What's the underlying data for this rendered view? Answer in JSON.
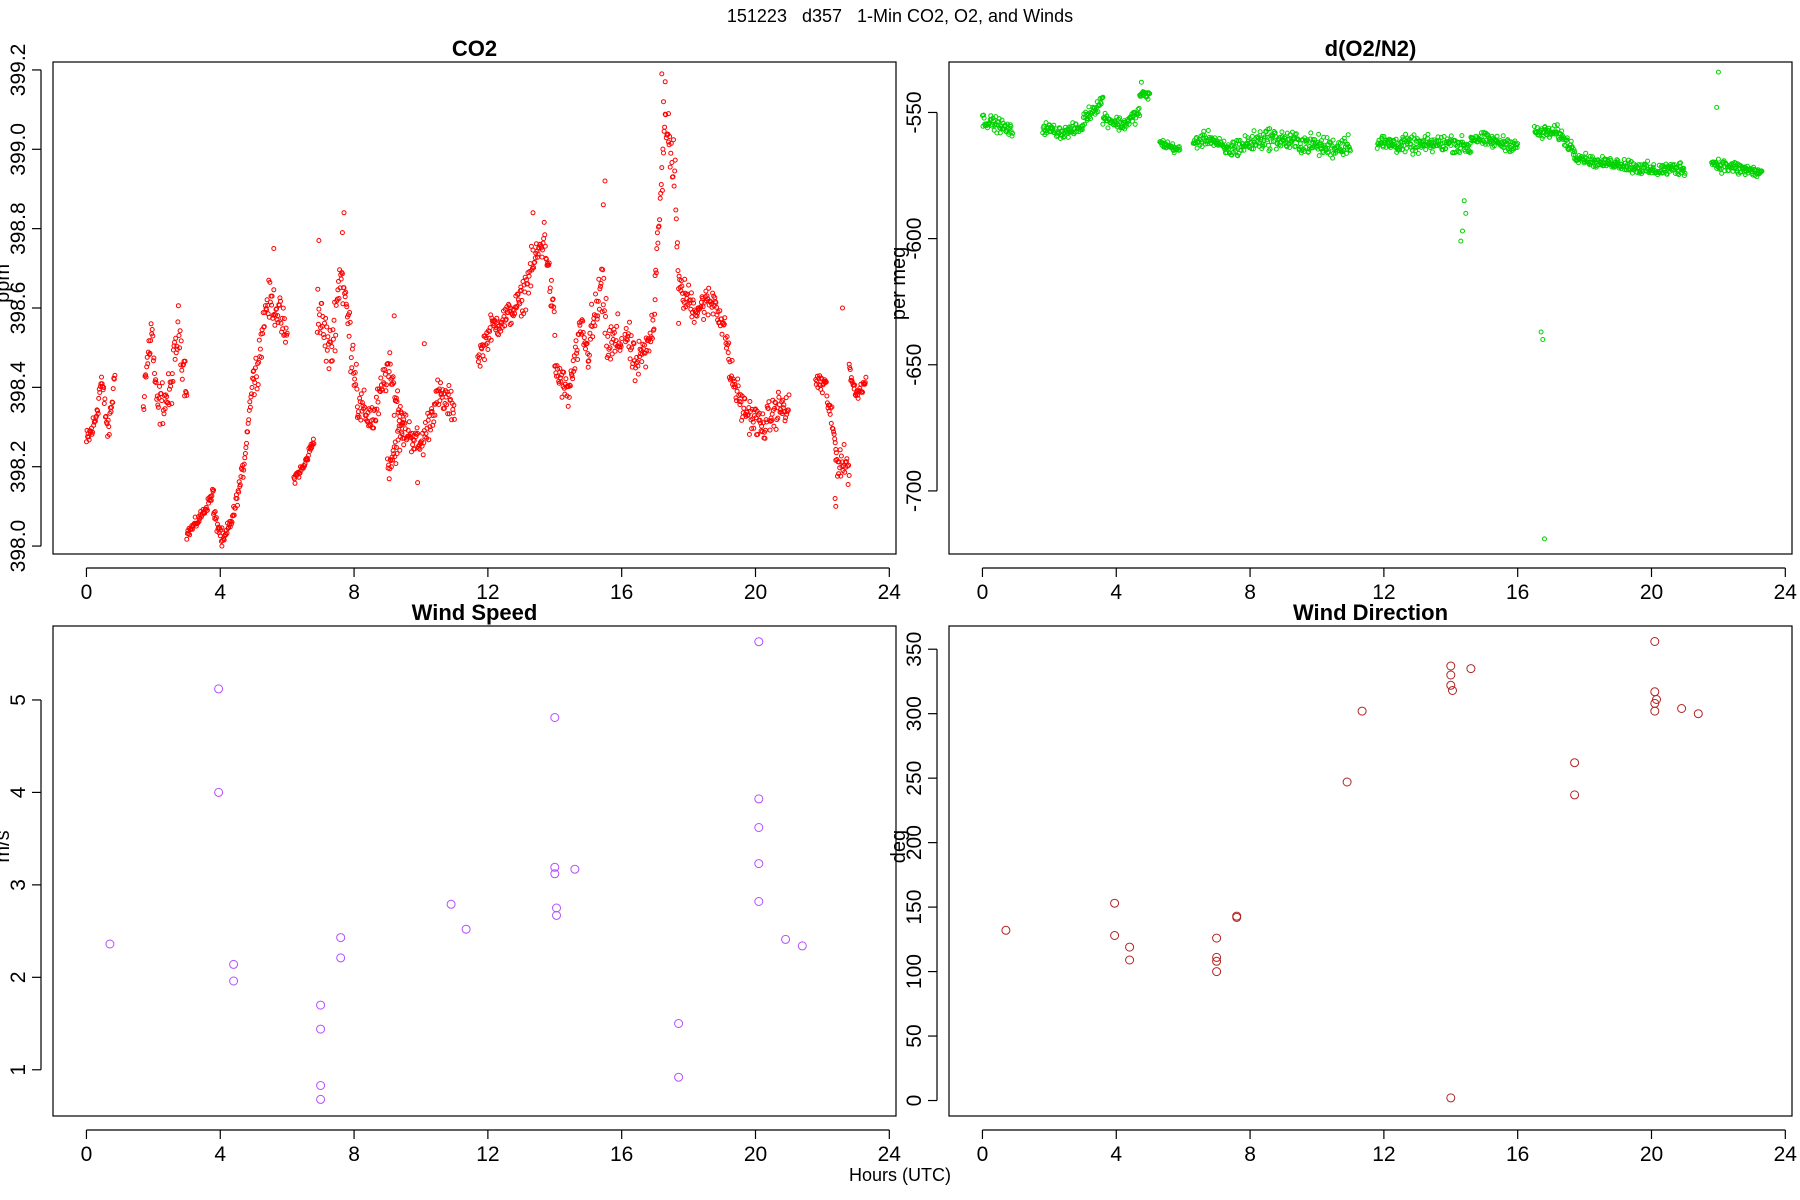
{
  "page": {
    "title": "151223   d357   1-Min CO2, O2, and Winds",
    "xlabel": "Hours (UTC)"
  },
  "chart_data": [
    {
      "id": "co2",
      "type": "scatter",
      "title": "CO2",
      "xlabel": "",
      "ylabel": "ppm",
      "xlim": [
        -1,
        24.2
      ],
      "ylim": [
        397.98,
        399.22
      ],
      "xticks": [
        0,
        4,
        8,
        12,
        16,
        20,
        24
      ],
      "yticks": [
        398.0,
        398.2,
        398.4,
        398.6,
        398.8,
        399.0,
        399.2
      ],
      "ytick_decimals": 1,
      "color": "#ff0000",
      "marker_radius": 2,
      "segments": [
        [
          0.0,
          0.85,
          [
            [
              0,
              398.26
            ],
            [
              0.25,
              398.31
            ],
            [
              0.45,
              398.42
            ],
            [
              0.65,
              398.28
            ],
            [
              0.85,
              398.43
            ]
          ],
          0.05
        ],
        [
          1.7,
          3.0,
          [
            [
              1.7,
              398.38
            ],
            [
              1.95,
              398.55
            ],
            [
              2.1,
              398.35
            ],
            [
              2.5,
              398.38
            ],
            [
              2.75,
              398.55
            ],
            [
              3.0,
              398.4
            ]
          ],
          0.08
        ],
        [
          3.0,
          3.8,
          [
            [
              3.0,
              398.03
            ],
            [
              3.3,
              398.06
            ],
            [
              3.6,
              398.1
            ],
            [
              3.8,
              398.14
            ]
          ],
          0.02
        ],
        [
          3.8,
          5.0,
          [
            [
              3.8,
              398.08
            ],
            [
              4.1,
              398.01
            ],
            [
              4.4,
              398.08
            ],
            [
              4.7,
              398.2
            ],
            [
              5.0,
              398.45
            ]
          ],
          0.03
        ],
        [
          5.0,
          6.0,
          [
            [
              5.0,
              398.4
            ],
            [
              5.4,
              398.62
            ],
            [
              5.7,
              398.6
            ],
            [
              6.0,
              398.52
            ]
          ],
          0.07
        ],
        [
          6.2,
          6.8,
          [
            [
              6.2,
              398.17
            ],
            [
              6.5,
              398.2
            ],
            [
              6.8,
              398.27
            ]
          ],
          0.02
        ],
        [
          6.9,
          8.1,
          [
            [
              6.9,
              398.6
            ],
            [
              7.3,
              398.48
            ],
            [
              7.6,
              398.7
            ],
            [
              8.1,
              398.4
            ]
          ],
          0.1
        ],
        [
          8.1,
          9.5,
          [
            [
              8.1,
              398.35
            ],
            [
              8.6,
              398.32
            ],
            [
              9.0,
              398.45
            ],
            [
              9.5,
              398.3
            ]
          ],
          0.07
        ],
        [
          9.0,
          11.0,
          [
            [
              9.0,
              398.2
            ],
            [
              9.5,
              398.3
            ],
            [
              10.0,
              398.25
            ],
            [
              10.5,
              398.38
            ],
            [
              11.0,
              398.35
            ]
          ],
          0.06
        ],
        [
          11.7,
          13.0,
          [
            [
              11.7,
              398.47
            ],
            [
              12.1,
              398.55
            ],
            [
              12.6,
              398.58
            ],
            [
              13.0,
              398.62
            ]
          ],
          0.05
        ],
        [
          13.0,
          14.0,
          [
            [
              13.0,
              398.62
            ],
            [
              13.4,
              398.72
            ],
            [
              13.7,
              398.78
            ],
            [
              14.0,
              398.55
            ]
          ],
          0.07
        ],
        [
          14.0,
          15.0,
          [
            [
              14.0,
              398.45
            ],
            [
              14.4,
              398.38
            ],
            [
              14.8,
              398.55
            ],
            [
              15.0,
              398.48
            ]
          ],
          0.06
        ],
        [
          15.0,
          16.0,
          [
            [
              15.0,
              398.5
            ],
            [
              15.4,
              398.65
            ],
            [
              15.6,
              398.5
            ],
            [
              16.0,
              398.52
            ]
          ],
          0.1
        ],
        [
          16.1,
          17.0,
          [
            [
              16.1,
              398.55
            ],
            [
              16.4,
              398.45
            ],
            [
              16.8,
              398.5
            ],
            [
              17.0,
              398.6
            ]
          ],
          0.07
        ],
        [
          17.0,
          17.7,
          [
            [
              17.0,
              398.7
            ],
            [
              17.3,
              399.05
            ],
            [
              17.6,
              398.95
            ],
            [
              17.7,
              398.6
            ]
          ],
          0.1
        ],
        [
          17.7,
          19.2,
          [
            [
              17.7,
              398.65
            ],
            [
              18.2,
              398.6
            ],
            [
              18.8,
              398.62
            ],
            [
              19.2,
              398.5
            ]
          ],
          0.06
        ],
        [
          19.2,
          21.0,
          [
            [
              19.2,
              398.45
            ],
            [
              19.6,
              398.35
            ],
            [
              20.2,
              398.3
            ],
            [
              20.7,
              398.35
            ],
            [
              21.0,
              398.34
            ]
          ],
          0.06
        ],
        [
          21.8,
          22.4,
          [
            [
              21.8,
              398.42
            ],
            [
              22.1,
              398.4
            ],
            [
              22.4,
              398.25
            ]
          ],
          0.05
        ],
        [
          22.4,
          22.8,
          [
            [
              22.4,
              398.22
            ],
            [
              22.8,
              398.2
            ]
          ],
          0.06
        ],
        [
          22.8,
          23.3,
          [
            [
              22.8,
              398.45
            ],
            [
              23.0,
              398.38
            ],
            [
              23.3,
              398.42
            ]
          ],
          0.03
        ]
      ],
      "extra_points": [
        [
          17.2,
          399.19
        ],
        [
          17.3,
          399.17
        ],
        [
          17.25,
          399.12
        ],
        [
          17.4,
          399.09
        ],
        [
          15.5,
          398.92
        ],
        [
          15.45,
          398.86
        ],
        [
          7.7,
          398.84
        ],
        [
          7.65,
          398.79
        ],
        [
          6.95,
          398.77
        ],
        [
          5.6,
          398.75
        ],
        [
          13.35,
          398.84
        ],
        [
          9.2,
          398.58
        ],
        [
          10.1,
          398.51
        ],
        [
          22.6,
          398.6
        ],
        [
          22.4,
          398.1
        ],
        [
          22.38,
          398.12
        ],
        [
          4.05,
          398.0
        ],
        [
          9.9,
          398.16
        ]
      ]
    },
    {
      "id": "o2",
      "type": "scatter",
      "title": "d(O2/N2)",
      "xlabel": "",
      "ylabel": "per meg",
      "xlim": [
        -1,
        24.2
      ],
      "ylim": [
        -725,
        -530
      ],
      "xticks": [
        0,
        4,
        8,
        12,
        16,
        20,
        24
      ],
      "yticks": [
        -550,
        -600,
        -650,
        -700
      ],
      "ytick_decimals": 0,
      "color": "#00d200",
      "marker_radius": 2,
      "segments": [
        [
          0.0,
          0.9,
          [
            [
              0,
              -553
            ],
            [
              0.5,
              -555
            ],
            [
              0.9,
              -558
            ]
          ],
          4
        ],
        [
          1.8,
          3.0,
          [
            [
              1.8,
              -556
            ],
            [
              2.4,
              -558
            ],
            [
              3.0,
              -556
            ]
          ],
          3.5
        ],
        [
          3.0,
          3.6,
          [
            [
              3.0,
              -553
            ],
            [
              3.6,
              -545
            ]
          ],
          4
        ],
        [
          3.6,
          4.7,
          [
            [
              3.6,
              -552
            ],
            [
              4.2,
              -555
            ],
            [
              4.7,
              -550
            ]
          ],
          4
        ],
        [
          4.7,
          5.0,
          [
            [
              4.7,
              -543
            ],
            [
              5.0,
              -543
            ]
          ],
          2.5
        ],
        [
          5.3,
          5.9,
          [
            [
              5.3,
              -562
            ],
            [
              5.9,
              -565
            ]
          ],
          2.5
        ],
        [
          6.3,
          7.3,
          [
            [
              6.3,
              -562
            ],
            [
              6.8,
              -560
            ],
            [
              7.3,
              -565
            ]
          ],
          4
        ],
        [
          7.3,
          11.0,
          [
            [
              7.3,
              -565
            ],
            [
              8.5,
              -560
            ],
            [
              9.5,
              -562
            ],
            [
              10.5,
              -564
            ],
            [
              11.0,
              -562
            ]
          ],
          6
        ],
        [
          11.8,
          14.6,
          [
            [
              11.8,
              -562
            ],
            [
              13.0,
              -563
            ],
            [
              14.0,
              -562
            ],
            [
              14.6,
              -564
            ]
          ],
          5
        ],
        [
          14.6,
          16.0,
          [
            [
              14.6,
              -560
            ],
            [
              15.5,
              -562
            ],
            [
              16.0,
              -563
            ]
          ],
          4
        ],
        [
          16.5,
          17.7,
          [
            [
              16.5,
              -558
            ],
            [
              17.2,
              -558
            ],
            [
              17.7,
              -565
            ]
          ],
          4
        ],
        [
          17.7,
          19.0,
          [
            [
              17.7,
              -567
            ],
            [
              18.4,
              -570
            ],
            [
              19.0,
              -570
            ]
          ],
          3
        ],
        [
          19.0,
          21.0,
          [
            [
              19.0,
              -570
            ],
            [
              20.0,
              -573
            ],
            [
              21.0,
              -572
            ]
          ],
          4
        ],
        [
          21.8,
          23.3,
          [
            [
              21.8,
              -570
            ],
            [
              22.5,
              -572
            ],
            [
              23.3,
              -574
            ]
          ],
          4
        ]
      ],
      "extra_points": [
        [
          14.4,
          -585
        ],
        [
          14.45,
          -590
        ],
        [
          14.35,
          -597
        ],
        [
          14.3,
          -601
        ],
        [
          16.7,
          -637
        ],
        [
          16.75,
          -640
        ],
        [
          16.8,
          -719
        ],
        [
          21.95,
          -548
        ],
        [
          22.0,
          -534
        ],
        [
          4.75,
          -538
        ]
      ]
    },
    {
      "id": "wind-speed",
      "type": "scatter",
      "title": "Wind Speed",
      "xlabel": "",
      "ylabel": "m/s",
      "xlim": [
        -1,
        24.2
      ],
      "ylim": [
        0.5,
        5.8
      ],
      "xticks": [
        0,
        4,
        8,
        12,
        16,
        20,
        24
      ],
      "yticks": [
        1,
        2,
        3,
        4,
        5
      ],
      "ytick_decimals": 0,
      "color": "#b44dff",
      "marker_radius": 4,
      "points": [
        [
          0.7,
          2.36
        ],
        [
          3.95,
          5.12
        ],
        [
          3.95,
          4.0
        ],
        [
          4.4,
          2.14
        ],
        [
          4.4,
          1.96
        ],
        [
          7.0,
          1.7
        ],
        [
          7.0,
          1.44
        ],
        [
          7.0,
          0.83
        ],
        [
          7.0,
          0.68
        ],
        [
          7.6,
          2.43
        ],
        [
          7.6,
          2.21
        ],
        [
          10.9,
          2.79
        ],
        [
          11.35,
          2.52
        ],
        [
          14.0,
          4.81
        ],
        [
          14.0,
          3.19
        ],
        [
          14.0,
          3.12
        ],
        [
          14.05,
          2.75
        ],
        [
          14.05,
          2.67
        ],
        [
          14.6,
          3.17
        ],
        [
          17.7,
          1.5
        ],
        [
          17.7,
          0.92
        ],
        [
          20.1,
          5.63
        ],
        [
          20.1,
          3.93
        ],
        [
          20.1,
          3.62
        ],
        [
          20.1,
          3.23
        ],
        [
          20.1,
          2.82
        ],
        [
          20.9,
          2.41
        ],
        [
          21.4,
          2.34
        ]
      ]
    },
    {
      "id": "wind-dir",
      "type": "scatter",
      "title": "Wind Direction",
      "xlabel": "",
      "ylabel": "deg",
      "xlim": [
        -1,
        24.2
      ],
      "ylim": [
        -12,
        368
      ],
      "xticks": [
        0,
        4,
        8,
        12,
        16,
        20,
        24
      ],
      "yticks": [
        0,
        50,
        100,
        150,
        200,
        250,
        300,
        350
      ],
      "ytick_decimals": 0,
      "color": "#b22222",
      "marker_radius": 4,
      "points": [
        [
          0.7,
          132
        ],
        [
          3.95,
          153
        ],
        [
          3.95,
          128
        ],
        [
          4.4,
          119
        ],
        [
          4.4,
          109
        ],
        [
          7.0,
          126
        ],
        [
          7.0,
          111
        ],
        [
          7.0,
          108
        ],
        [
          7.0,
          100
        ],
        [
          7.6,
          143
        ],
        [
          7.6,
          142
        ],
        [
          10.9,
          247
        ],
        [
          11.35,
          302
        ],
        [
          14.0,
          337
        ],
        [
          14.0,
          330
        ],
        [
          14.0,
          322
        ],
        [
          14.05,
          318
        ],
        [
          14.0,
          2
        ],
        [
          14.6,
          335
        ],
        [
          17.7,
          262
        ],
        [
          17.7,
          237
        ],
        [
          20.1,
          356
        ],
        [
          20.1,
          317
        ],
        [
          20.15,
          311
        ],
        [
          20.1,
          308
        ],
        [
          20.1,
          302
        ],
        [
          20.9,
          304
        ],
        [
          21.4,
          300
        ]
      ]
    }
  ]
}
